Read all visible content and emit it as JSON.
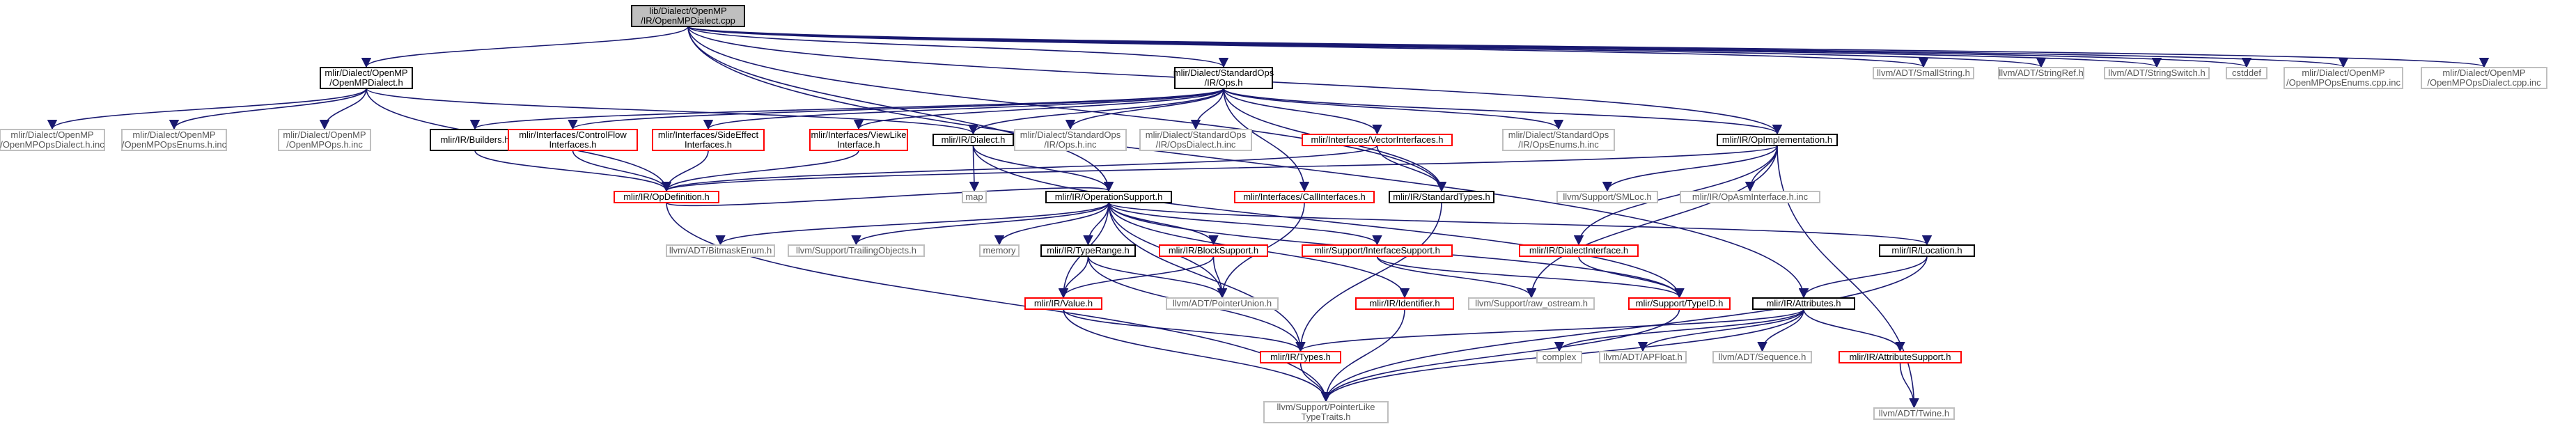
{
  "colors": {
    "edge": "#191970",
    "border_default": "#000000",
    "border_red": "#ff0000",
    "border_gray": "#bfbfbf",
    "fill_root": "#bfbfbf",
    "fill_default": "#ffffff",
    "text_default": "#000000",
    "text_gray": "#555555"
  },
  "nodes": [
    {
      "id": "root",
      "style": "root",
      "lines": [
        "lib/Dialect/OpenMP",
        "/IR/OpenMPDialect.cpp"
      ]
    },
    {
      "id": "ompdialect_h",
      "style": "default",
      "lines": [
        "mlir/Dialect/OpenMP",
        "/OpenMPDialect.h"
      ]
    },
    {
      "id": "stdops_h",
      "style": "default",
      "lines": [
        "mlir/Dialect/StandardOps",
        "/IR/Ops.h"
      ]
    },
    {
      "id": "smallstring",
      "style": "gray",
      "lines": [
        "llvm/ADT/SmallString.h"
      ]
    },
    {
      "id": "stringref",
      "style": "gray",
      "lines": [
        "llvm/ADT/StringRef.h"
      ]
    },
    {
      "id": "stringswitch",
      "style": "gray",
      "lines": [
        "llvm/ADT/StringSwitch.h"
      ]
    },
    {
      "id": "cstddef",
      "style": "gray",
      "lines": [
        "cstddef"
      ]
    },
    {
      "id": "ompenums_cpp",
      "style": "gray",
      "lines": [
        "mlir/Dialect/OpenMP",
        "/OpenMPOpsEnums.cpp.inc"
      ]
    },
    {
      "id": "ompops_cpp",
      "style": "gray",
      "lines": [
        "mlir/Dialect/OpenMP",
        "/OpenMPOpsDialect.cpp.inc"
      ]
    },
    {
      "id": "ompopsdialect_h",
      "style": "gray",
      "lines": [
        "mlir/Dialect/OpenMP",
        "/OpenMPOpsDialect.h.inc"
      ]
    },
    {
      "id": "ompopsenums_h",
      "style": "gray",
      "lines": [
        "mlir/Dialect/OpenMP",
        "/OpenMPOpsEnums.h.inc"
      ]
    },
    {
      "id": "ompops_h",
      "style": "gray",
      "lines": [
        "mlir/Dialect/OpenMP",
        "/OpenMPOps.h.inc"
      ]
    },
    {
      "id": "builders",
      "style": "default",
      "lines": [
        "mlir/IR/Builders.h"
      ]
    },
    {
      "id": "controlflow",
      "style": "red",
      "lines": [
        "mlir/Interfaces/ControlFlow",
        "Interfaces.h"
      ]
    },
    {
      "id": "sideeffect",
      "style": "red",
      "lines": [
        "mlir/Interfaces/SideEffect",
        "Interfaces.h"
      ]
    },
    {
      "id": "viewlike",
      "style": "red",
      "lines": [
        "mlir/Interfaces/ViewLike",
        "Interface.h"
      ]
    },
    {
      "id": "dialect_h",
      "style": "default",
      "lines": [
        "mlir/IR/Dialect.h"
      ]
    },
    {
      "id": "stdops_inc",
      "style": "gray",
      "lines": [
        "mlir/Dialect/StandardOps",
        "/IR/Ops.h.inc"
      ]
    },
    {
      "id": "stdopsdialect_inc",
      "style": "gray",
      "lines": [
        "mlir/Dialect/StandardOps",
        "/IR/OpsDialect.h.inc"
      ]
    },
    {
      "id": "vectorif",
      "style": "red",
      "lines": [
        "mlir/Interfaces/VectorInterfaces.h"
      ]
    },
    {
      "id": "stdopsenums_inc",
      "style": "gray",
      "lines": [
        "mlir/Dialect/StandardOps",
        "/IR/OpsEnums.h.inc"
      ]
    },
    {
      "id": "opimpl",
      "style": "default",
      "lines": [
        "mlir/IR/OpImplementation.h"
      ]
    },
    {
      "id": "opdefinition",
      "style": "red",
      "lines": [
        "mlir/IR/OpDefinition.h"
      ]
    },
    {
      "id": "map",
      "style": "gray",
      "lines": [
        "map"
      ]
    },
    {
      "id": "opsupport",
      "style": "default",
      "lines": [
        "mlir/IR/OperationSupport.h"
      ]
    },
    {
      "id": "callif",
      "style": "red",
      "lines": [
        "mlir/Interfaces/CallInterfaces.h"
      ]
    },
    {
      "id": "stdtypes",
      "style": "default",
      "lines": [
        "mlir/IR/StandardTypes.h"
      ]
    },
    {
      "id": "smloc",
      "style": "gray",
      "lines": [
        "llvm/Support/SMLoc.h"
      ]
    },
    {
      "id": "opasmif",
      "style": "gray",
      "lines": [
        "mlir/IR/OpAsmInterface.h.inc"
      ]
    },
    {
      "id": "bitmaskenum",
      "style": "gray",
      "lines": [
        "llvm/ADT/BitmaskEnum.h"
      ]
    },
    {
      "id": "trailingobj",
      "style": "gray",
      "lines": [
        "llvm/Support/TrailingObjects.h"
      ]
    },
    {
      "id": "memory",
      "style": "gray",
      "lines": [
        "memory"
      ]
    },
    {
      "id": "typerange",
      "style": "default",
      "lines": [
        "mlir/IR/TypeRange.h"
      ]
    },
    {
      "id": "blocksupport",
      "style": "red",
      "lines": [
        "mlir/IR/BlockSupport.h"
      ]
    },
    {
      "id": "ifsupport",
      "style": "red",
      "lines": [
        "mlir/Support/InterfaceSupport.h"
      ]
    },
    {
      "id": "dialectif",
      "style": "red",
      "lines": [
        "mlir/IR/DialectInterface.h"
      ]
    },
    {
      "id": "location",
      "style": "default",
      "lines": [
        "mlir/IR/Location.h"
      ]
    },
    {
      "id": "value",
      "style": "red",
      "lines": [
        "mlir/IR/Value.h"
      ]
    },
    {
      "id": "pointerunion",
      "style": "gray",
      "lines": [
        "llvm/ADT/PointerUnion.h"
      ]
    },
    {
      "id": "identifier",
      "style": "red",
      "lines": [
        "mlir/IR/Identifier.h"
      ]
    },
    {
      "id": "rawostream",
      "style": "gray",
      "lines": [
        "llvm/Support/raw_ostream.h"
      ]
    },
    {
      "id": "typeid",
      "style": "red",
      "lines": [
        "mlir/Support/TypeID.h"
      ]
    },
    {
      "id": "attributes",
      "style": "default",
      "lines": [
        "mlir/IR/Attributes.h"
      ]
    },
    {
      "id": "types",
      "style": "red",
      "lines": [
        "mlir/IR/Types.h"
      ]
    },
    {
      "id": "complex",
      "style": "gray",
      "lines": [
        "complex"
      ]
    },
    {
      "id": "apfloat",
      "style": "gray",
      "lines": [
        "llvm/ADT/APFloat.h"
      ]
    },
    {
      "id": "sequence",
      "style": "gray",
      "lines": [
        "llvm/ADT/Sequence.h"
      ]
    },
    {
      "id": "attrsupport",
      "style": "red",
      "lines": [
        "mlir/IR/AttributeSupport.h"
      ]
    },
    {
      "id": "ptrlike",
      "style": "gray",
      "lines": [
        "llvm/Support/PointerLike",
        "TypeTraits.h"
      ]
    },
    {
      "id": "twine",
      "style": "gray",
      "lines": [
        "llvm/ADT/Twine.h"
      ]
    }
  ],
  "edges": [
    [
      "root",
      "ompdialect_h"
    ],
    [
      "root",
      "stdops_h"
    ],
    [
      "root",
      "smallstring"
    ],
    [
      "root",
      "stringref"
    ],
    [
      "root",
      "stringswitch"
    ],
    [
      "root",
      "cstddef"
    ],
    [
      "root",
      "ompenums_cpp"
    ],
    [
      "root",
      "ompops_cpp"
    ],
    [
      "root",
      "opimpl"
    ],
    [
      "root",
      "stdtypes"
    ],
    [
      "root",
      "attributes"
    ],
    [
      "root",
      "opsupport"
    ],
    [
      "ompdialect_h",
      "ompopsdialect_h"
    ],
    [
      "ompdialect_h",
      "ompopsenums_h"
    ],
    [
      "ompdialect_h",
      "ompops_h"
    ],
    [
      "ompdialect_h",
      "opdefinition"
    ],
    [
      "ompdialect_h",
      "dialect_h"
    ],
    [
      "stdops_h",
      "builders"
    ],
    [
      "stdops_h",
      "controlflow"
    ],
    [
      "stdops_h",
      "sideeffect"
    ],
    [
      "stdops_h",
      "viewlike"
    ],
    [
      "stdops_h",
      "dialect_h"
    ],
    [
      "stdops_h",
      "stdops_inc"
    ],
    [
      "stdops_h",
      "stdopsdialect_inc"
    ],
    [
      "stdops_h",
      "vectorif"
    ],
    [
      "stdops_h",
      "stdopsenums_inc"
    ],
    [
      "stdops_h",
      "opimpl"
    ],
    [
      "stdops_h",
      "callif"
    ],
    [
      "stdops_h",
      "stdtypes"
    ],
    [
      "builders",
      "opdefinition"
    ],
    [
      "controlflow",
      "opdefinition"
    ],
    [
      "sideeffect",
      "opdefinition"
    ],
    [
      "viewlike",
      "opdefinition"
    ],
    [
      "vectorif",
      "opdefinition"
    ],
    [
      "vectorif",
      "stdtypes"
    ],
    [
      "dialect_h",
      "map"
    ],
    [
      "dialect_h",
      "opsupport"
    ],
    [
      "dialect_h",
      "typeid"
    ],
    [
      "opimpl",
      "opdefinition"
    ],
    [
      "opimpl",
      "smloc"
    ],
    [
      "opimpl",
      "opasmif"
    ],
    [
      "opimpl",
      "dialectif"
    ],
    [
      "opimpl",
      "rawostream"
    ],
    [
      "opimpl",
      "twine"
    ],
    [
      "opdefinition",
      "opsupport"
    ],
    [
      "opdefinition",
      "ptrlike"
    ],
    [
      "callif",
      "pointerunion"
    ],
    [
      "stdtypes",
      "types"
    ],
    [
      "opsupport",
      "bitmaskenum"
    ],
    [
      "opsupport",
      "trailingobj"
    ],
    [
      "opsupport",
      "memory"
    ],
    [
      "opsupport",
      "typerange"
    ],
    [
      "opsupport",
      "blocksupport"
    ],
    [
      "opsupport",
      "ifsupport"
    ],
    [
      "opsupport",
      "identifier"
    ],
    [
      "opsupport",
      "location"
    ],
    [
      "opsupport",
      "value"
    ],
    [
      "opsupport",
      "pointerunion"
    ],
    [
      "opsupport",
      "types"
    ],
    [
      "opsupport",
      "typeid"
    ],
    [
      "typerange",
      "value"
    ],
    [
      "typerange",
      "pointerunion"
    ],
    [
      "typerange",
      "types"
    ],
    [
      "blocksupport",
      "value"
    ],
    [
      "blocksupport",
      "pointerunion"
    ],
    [
      "ifsupport",
      "rawostream"
    ],
    [
      "ifsupport",
      "typeid"
    ],
    [
      "dialectif",
      "typeid"
    ],
    [
      "location",
      "attributes"
    ],
    [
      "location",
      "ptrlike"
    ],
    [
      "value",
      "types"
    ],
    [
      "value",
      "ptrlike"
    ],
    [
      "identifier",
      "ptrlike"
    ],
    [
      "typeid",
      "ptrlike"
    ],
    [
      "attributes",
      "complex"
    ],
    [
      "attributes",
      "apfloat"
    ],
    [
      "attributes",
      "sequence"
    ],
    [
      "attributes",
      "attrsupport"
    ],
    [
      "attributes",
      "types"
    ],
    [
      "attributes",
      "ptrlike"
    ],
    [
      "attrsupport",
      "twine"
    ],
    [
      "types",
      "ptrlike"
    ]
  ]
}
